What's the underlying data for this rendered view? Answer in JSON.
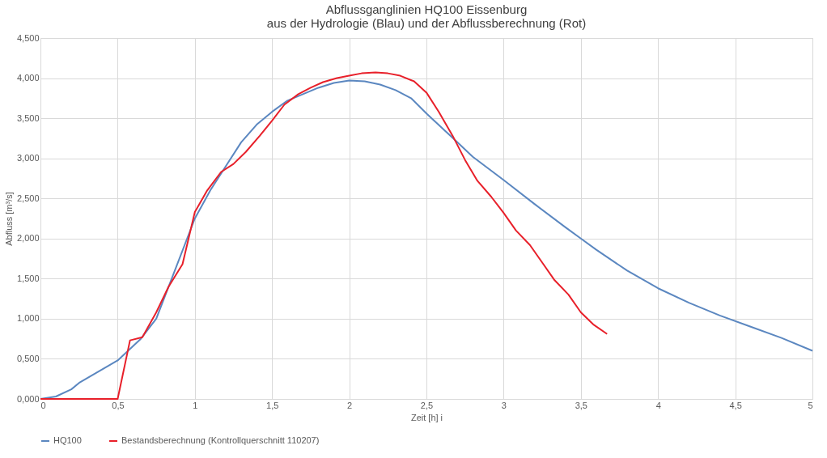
{
  "chart_data": {
    "type": "line",
    "title": [
      "Abflussganglinien HQ100 Eissenburg",
      "aus der Hydrologie (Blau) und der Abflussberechnung (Rot)"
    ],
    "xlabel": "Zeit [h] i",
    "ylabel": "Abfluss [m³/s]",
    "xlim": [
      0,
      5
    ],
    "ylim": [
      0,
      4.5
    ],
    "xticks": [
      0,
      {
        "value": 0.5,
        "label": "0,5"
      },
      1,
      {
        "value": 1.5,
        "label": "1,5"
      },
      2,
      {
        "value": 2.5,
        "label": "2,5"
      },
      3,
      {
        "value": 3.5,
        "label": "3,5"
      },
      4,
      {
        "value": 4.5,
        "label": "4,5"
      },
      5
    ],
    "yticks": [
      {
        "value": 0,
        "label": "0,000"
      },
      {
        "value": 0.5,
        "label": "0,500"
      },
      {
        "value": 1,
        "label": "1,000"
      },
      {
        "value": 1.5,
        "label": "1,500"
      },
      {
        "value": 2,
        "label": "2,000"
      },
      {
        "value": 2.5,
        "label": "2,500"
      },
      {
        "value": 3,
        "label": "3,000"
      },
      {
        "value": 3.5,
        "label": "3,500"
      },
      {
        "value": 4,
        "label": "4,000"
      },
      {
        "value": 4.5,
        "label": "4,500"
      }
    ],
    "grid": true,
    "legend": "bottom",
    "marker": "none",
    "line_style": "solid",
    "series": [
      {
        "name": "HQ100",
        "color": "#5b87c0",
        "x": [
          0,
          0.1,
          0.2,
          0.25,
          0.5,
          0.65,
          0.75,
          0.85,
          1.0,
          1.1,
          1.2,
          1.3,
          1.4,
          1.5,
          1.6,
          1.7,
          1.8,
          1.9,
          2.0,
          2.1,
          2.2,
          2.3,
          2.4,
          2.5,
          2.6,
          2.7,
          2.8,
          3.0,
          3.2,
          3.4,
          3.5,
          3.6,
          3.8,
          4.0,
          4.2,
          4.4,
          4.6,
          4.8,
          5.0
        ],
        "values": [
          0,
          0.03,
          0.12,
          0.2,
          0.48,
          0.75,
          1.0,
          1.5,
          2.25,
          2.6,
          2.9,
          3.2,
          3.42,
          3.58,
          3.72,
          3.8,
          3.88,
          3.94,
          3.97,
          3.96,
          3.92,
          3.85,
          3.75,
          3.56,
          3.38,
          3.2,
          3.02,
          2.73,
          2.43,
          2.14,
          2.0,
          1.86,
          1.6,
          1.38,
          1.2,
          1.04,
          0.9,
          0.76,
          0.6
        ]
      },
      {
        "name": "Bestandsberechnung (Kontrollquerschnitt 110207)",
        "color": "#e8202a",
        "x": [
          0,
          0.5,
          0.58,
          0.66,
          0.75,
          0.83,
          0.92,
          1.0,
          1.08,
          1.17,
          1.25,
          1.33,
          1.42,
          1.5,
          1.58,
          1.67,
          1.75,
          1.83,
          1.92,
          2.0,
          2.08,
          2.17,
          2.25,
          2.33,
          2.42,
          2.5,
          2.58,
          2.67,
          2.75,
          2.83,
          2.92,
          3.0,
          3.08,
          3.17,
          3.25,
          3.33,
          3.42,
          3.5,
          3.58,
          3.67
        ],
        "values": [
          0,
          0,
          0.73,
          0.77,
          1.08,
          1.4,
          1.68,
          2.33,
          2.6,
          2.83,
          2.93,
          3.08,
          3.28,
          3.47,
          3.67,
          3.8,
          3.88,
          3.95,
          4.0,
          4.03,
          4.06,
          4.07,
          4.06,
          4.03,
          3.96,
          3.82,
          3.58,
          3.28,
          2.98,
          2.72,
          2.52,
          2.32,
          2.1,
          1.92,
          1.7,
          1.48,
          1.3,
          1.08,
          0.93,
          0.81
        ]
      }
    ]
  }
}
